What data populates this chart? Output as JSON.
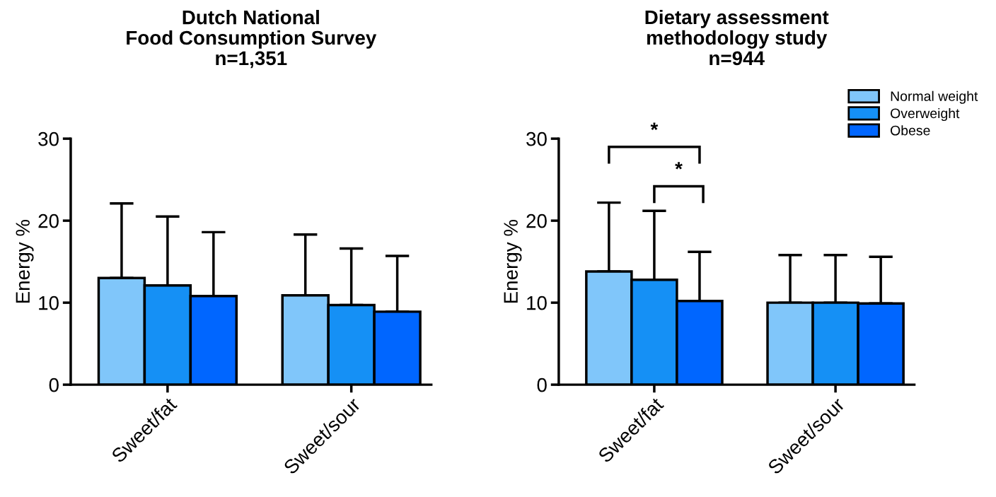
{
  "chart_data": [
    {
      "type": "bar",
      "title": "Dutch National\nFood Consumption Survey\nn=1,351",
      "ylabel": "Energy %",
      "categories": [
        "Sweet/fat",
        "Sweet/sour"
      ],
      "ylim": [
        0,
        30
      ],
      "yticks": [
        0,
        10,
        20,
        30
      ],
      "grid": false,
      "legend": false,
      "series": [
        {
          "color": "#80c6fa",
          "values": [
            13.0,
            10.9
          ],
          "errors": [
            [
              13.0,
              22.1
            ],
            [
              10.9,
              18.3
            ]
          ]
        },
        {
          "color": "#1590f5",
          "values": [
            12.1,
            9.7
          ],
          "errors": [
            [
              12.1,
              20.5
            ],
            [
              9.7,
              16.6
            ]
          ]
        },
        {
          "color": "#0066ff",
          "values": [
            10.8,
            8.9
          ],
          "errors": [
            [
              10.8,
              18.6
            ],
            [
              8.9,
              15.7
            ]
          ]
        }
      ]
    },
    {
      "type": "bar",
      "title": "Dietary assessment\nmethodology study\nn=944",
      "ylabel": "Energy %",
      "categories": [
        "Sweet/fat",
        "Sweet/sour"
      ],
      "ylim": [
        0,
        30
      ],
      "yticks": [
        0,
        10,
        20,
        30
      ],
      "grid": false,
      "legend": "top right",
      "annotations": [
        "*",
        "*"
      ],
      "series": [
        {
          "name": "Normal weight",
          "color": "#80c6fa",
          "values": [
            13.8,
            10.0
          ],
          "errors": [
            [
              13.8,
              22.2
            ],
            [
              10.0,
              15.8
            ]
          ]
        },
        {
          "name": "Overweight",
          "color": "#1590f5",
          "values": [
            12.8,
            10.0
          ],
          "errors": [
            [
              12.8,
              21.2
            ],
            [
              10.0,
              15.8
            ]
          ]
        },
        {
          "name": "Obese",
          "color": "#0066ff",
          "values": [
            10.2,
            9.9
          ],
          "errors": [
            [
              10.2,
              16.2
            ],
            [
              9.9,
              15.6
            ]
          ]
        }
      ]
    }
  ]
}
